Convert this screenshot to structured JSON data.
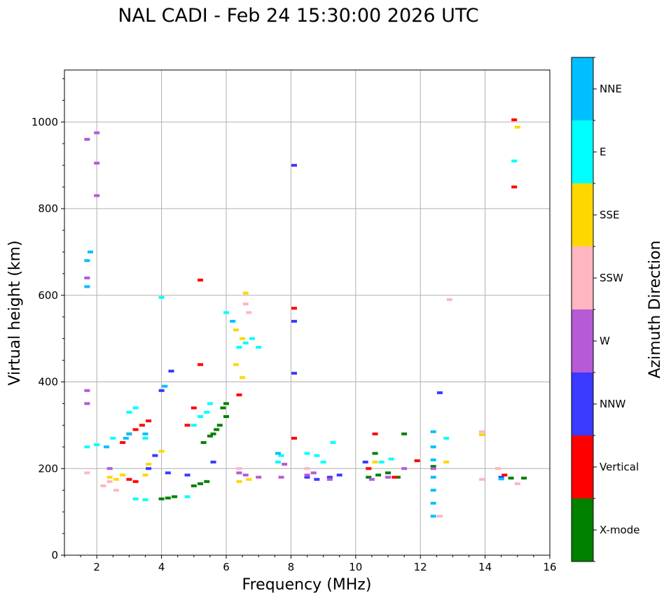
{
  "chart_data": {
    "type": "scatter",
    "title": "NAL CADI - Feb 24 15:30:00 2026 UTC",
    "xlabel": "Frequency (MHz)",
    "ylabel": "Virtual height (km)",
    "xlim": [
      1,
      16
    ],
    "ylim": [
      0,
      1120
    ],
    "xticks": [
      2,
      4,
      6,
      8,
      10,
      12,
      14,
      16
    ],
    "yticks": [
      0,
      200,
      400,
      600,
      800,
      1000
    ],
    "grid": true,
    "colorbar": {
      "label": "Azimuth Direction",
      "categories": [
        {
          "name": "X-mode",
          "color": "#008000"
        },
        {
          "name": "Vertical",
          "color": "#ff0000"
        },
        {
          "name": "NNW",
          "color": "#3a3aff"
        },
        {
          "name": "W",
          "color": "#b65ad6"
        },
        {
          "name": "SSW",
          "color": "#ffb6c1"
        },
        {
          "name": "SSE",
          "color": "#ffd700"
        },
        {
          "name": "E",
          "color": "#00ffff"
        },
        {
          "name": "NNE",
          "color": "#00bfff"
        }
      ]
    },
    "series": [
      {
        "name": "X-mode",
        "points": [
          [
            4.0,
            130
          ],
          [
            4.2,
            132
          ],
          [
            4.4,
            135
          ],
          [
            5.0,
            160
          ],
          [
            5.2,
            165
          ],
          [
            5.4,
            170
          ],
          [
            5.6,
            280
          ],
          [
            5.8,
            300
          ],
          [
            6.0,
            320
          ],
          [
            6.0,
            350
          ],
          [
            5.9,
            340
          ],
          [
            5.7,
            290
          ],
          [
            5.5,
            275
          ],
          [
            5.3,
            260
          ],
          [
            10.4,
            180
          ],
          [
            10.7,
            185
          ],
          [
            11.0,
            190
          ],
          [
            11.3,
            180
          ],
          [
            14.8,
            178
          ],
          [
            15.2,
            178
          ],
          [
            10.6,
            235
          ],
          [
            11.5,
            280
          ],
          [
            12.4,
            205
          ]
        ]
      },
      {
        "name": "Vertical",
        "points": [
          [
            3.0,
            280
          ],
          [
            3.2,
            290
          ],
          [
            3.4,
            300
          ],
          [
            3.6,
            310
          ],
          [
            3.0,
            175
          ],
          [
            3.2,
            170
          ],
          [
            2.8,
            260
          ],
          [
            4.8,
            300
          ],
          [
            5.0,
            340
          ],
          [
            5.2,
            440
          ],
          [
            5.2,
            635
          ],
          [
            6.4,
            370
          ],
          [
            8.1,
            570
          ],
          [
            8.1,
            270
          ],
          [
            10.6,
            280
          ],
          [
            10.4,
            200
          ],
          [
            11.2,
            180
          ],
          [
            14.9,
            1005
          ],
          [
            14.9,
            850
          ],
          [
            14.6,
            185
          ],
          [
            11.9,
            218
          ]
        ]
      },
      {
        "name": "NNW",
        "points": [
          [
            4.2,
            190
          ],
          [
            3.6,
            200
          ],
          [
            3.8,
            230
          ],
          [
            4.0,
            380
          ],
          [
            4.3,
            425
          ],
          [
            4.8,
            185
          ],
          [
            5.6,
            215
          ],
          [
            8.1,
            900
          ],
          [
            8.1,
            540
          ],
          [
            8.1,
            420
          ],
          [
            8.5,
            180
          ],
          [
            8.8,
            175
          ],
          [
            9.2,
            180
          ],
          [
            9.5,
            185
          ],
          [
            10.3,
            215
          ],
          [
            12.6,
            375
          ],
          [
            14.5,
            180
          ]
        ]
      },
      {
        "name": "W",
        "points": [
          [
            1.7,
            960
          ],
          [
            2.0,
            975
          ],
          [
            2.0,
            905
          ],
          [
            2.0,
            830
          ],
          [
            1.7,
            640
          ],
          [
            1.7,
            380
          ],
          [
            1.7,
            350
          ],
          [
            2.4,
            200
          ],
          [
            6.4,
            190
          ],
          [
            6.6,
            185
          ],
          [
            7.0,
            180
          ],
          [
            7.7,
            180
          ],
          [
            7.8,
            210
          ],
          [
            8.5,
            185
          ],
          [
            8.7,
            190
          ],
          [
            9.2,
            175
          ],
          [
            10.5,
            175
          ],
          [
            11.0,
            180
          ],
          [
            11.5,
            200
          ],
          [
            12.4,
            200
          ]
        ]
      },
      {
        "name": "SSW",
        "points": [
          [
            1.7,
            190
          ],
          [
            2.2,
            160
          ],
          [
            2.4,
            170
          ],
          [
            2.6,
            150
          ],
          [
            6.4,
            200
          ],
          [
            6.6,
            580
          ],
          [
            6.7,
            560
          ],
          [
            8.5,
            200
          ],
          [
            12.9,
            590
          ],
          [
            13.9,
            285
          ],
          [
            13.9,
            175
          ],
          [
            14.4,
            200
          ],
          [
            15.0,
            165
          ],
          [
            12.6,
            90
          ]
        ]
      },
      {
        "name": "SSE",
        "points": [
          [
            2.4,
            180
          ],
          [
            2.6,
            175
          ],
          [
            2.8,
            185
          ],
          [
            3.5,
            185
          ],
          [
            3.6,
            210
          ],
          [
            4.0,
            240
          ],
          [
            6.3,
            520
          ],
          [
            6.5,
            500
          ],
          [
            6.6,
            605
          ],
          [
            6.3,
            440
          ],
          [
            6.5,
            410
          ],
          [
            6.4,
            170
          ],
          [
            6.7,
            175
          ],
          [
            10.6,
            215
          ],
          [
            12.8,
            215
          ],
          [
            13.9,
            278
          ],
          [
            15.0,
            988
          ]
        ]
      },
      {
        "name": "E",
        "points": [
          [
            1.7,
            250
          ],
          [
            2.0,
            255
          ],
          [
            2.5,
            270
          ],
          [
            3.0,
            330
          ],
          [
            3.2,
            340
          ],
          [
            3.5,
            270
          ],
          [
            3.2,
            130
          ],
          [
            3.5,
            128
          ],
          [
            4.0,
            595
          ],
          [
            4.8,
            135
          ],
          [
            5.0,
            300
          ],
          [
            5.2,
            320
          ],
          [
            5.4,
            330
          ],
          [
            5.5,
            350
          ],
          [
            6.0,
            560
          ],
          [
            6.4,
            480
          ],
          [
            6.6,
            490
          ],
          [
            6.8,
            500
          ],
          [
            7.0,
            480
          ],
          [
            7.7,
            230
          ],
          [
            7.6,
            215
          ],
          [
            8.5,
            235
          ],
          [
            8.8,
            230
          ],
          [
            9.0,
            215
          ],
          [
            9.3,
            260
          ],
          [
            10.8,
            215
          ],
          [
            11.1,
            222
          ],
          [
            12.8,
            270
          ],
          [
            14.9,
            910
          ]
        ]
      },
      {
        "name": "NNE",
        "points": [
          [
            1.7,
            680
          ],
          [
            1.7,
            620
          ],
          [
            1.8,
            700
          ],
          [
            2.3,
            250
          ],
          [
            2.9,
            270
          ],
          [
            3.0,
            280
          ],
          [
            3.5,
            280
          ],
          [
            4.1,
            390
          ],
          [
            6.2,
            540
          ],
          [
            12.4,
            90
          ],
          [
            12.4,
            120
          ],
          [
            12.4,
            150
          ],
          [
            12.4,
            180
          ],
          [
            12.4,
            220
          ],
          [
            12.4,
            250
          ],
          [
            12.4,
            285
          ],
          [
            7.6,
            235
          ],
          [
            14.5,
            176
          ]
        ]
      }
    ]
  }
}
